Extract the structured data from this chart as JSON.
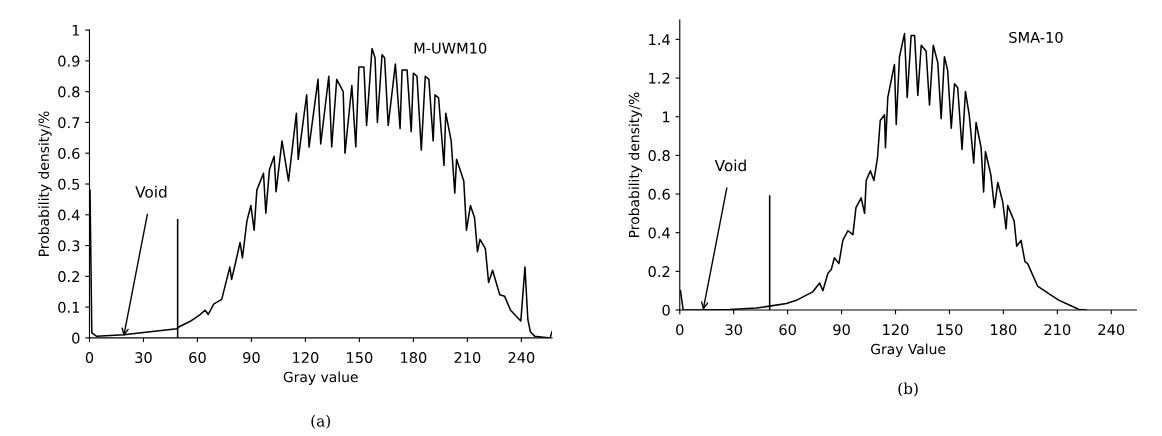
{
  "chart_data": [
    {
      "type": "line",
      "xlabel": "Gray value",
      "ylabel": "Probability density/%",
      "xlim": [
        0,
        257
      ],
      "ylim": [
        0,
        1
      ],
      "xticks": [
        0,
        30,
        60,
        90,
        120,
        150,
        180,
        210,
        240
      ],
      "yticks": [
        0,
        0.1,
        0.2,
        0.3,
        0.4,
        0.5,
        0.6,
        0.7,
        0.8,
        0.9,
        1
      ],
      "grid": false,
      "legend": false,
      "marker": "none",
      "line_style": "solid",
      "annotations": [
        {
          "text": "Void",
          "x": 19,
          "y": 0.005
        },
        "M-UWM10",
        "(a)"
      ],
      "series": [
        {
          "color": "#000000",
          "x": [
            0.3,
            1.3,
            4,
            19,
            33.7,
            48.6,
            50.4,
            56,
            61.5,
            64.3,
            66,
            69,
            73.5,
            75.4,
            78,
            79,
            81,
            83.7,
            85,
            87.5,
            89.7,
            91.5,
            93,
            96.7,
            98,
            100,
            102.6,
            103.7,
            107,
            110.6,
            115,
            116,
            120.7,
            122,
            127,
            128.5,
            133,
            134.6,
            137.4,
            141,
            142,
            145.8,
            148,
            149.7,
            152.5,
            154,
            157,
            158.7,
            160,
            162.6,
            164,
            166,
            170,
            172.6,
            173.7,
            176.5,
            178.8,
            180,
            182,
            184.4,
            186.6,
            188.6,
            191,
            192,
            194,
            197,
            198,
            201,
            203,
            204,
            208,
            209.5,
            211.7,
            214,
            215.6,
            217,
            220,
            221.8,
            224,
            228,
            230.7,
            234,
            239.7,
            242,
            243.6,
            245,
            247.5,
            256,
            257
          ],
          "values": [
            0.48,
            0.016,
            0.005,
            0.01,
            0.02,
            0.03,
            0.038,
            0.054,
            0.076,
            0.09,
            0.076,
            0.11,
            0.125,
            0.17,
            0.23,
            0.19,
            0.24,
            0.31,
            0.26,
            0.38,
            0.43,
            0.35,
            0.48,
            0.535,
            0.405,
            0.546,
            0.59,
            0.475,
            0.64,
            0.51,
            0.73,
            0.58,
            0.79,
            0.62,
            0.84,
            0.63,
            0.85,
            0.62,
            0.84,
            0.8,
            0.6,
            0.82,
            0.62,
            0.88,
            0.88,
            0.69,
            0.94,
            0.91,
            0.7,
            0.92,
            0.91,
            0.69,
            0.89,
            0.68,
            0.87,
            0.87,
            0.67,
            0.86,
            0.85,
            0.61,
            0.85,
            0.84,
            0.64,
            0.79,
            0.78,
            0.56,
            0.73,
            0.64,
            0.47,
            0.58,
            0.51,
            0.35,
            0.43,
            0.39,
            0.28,
            0.32,
            0.29,
            0.18,
            0.22,
            0.14,
            0.135,
            0.09,
            0.055,
            0.23,
            0.06,
            0.02,
            0.005,
            0,
            0.02
          ]
        },
        {
          "color": "#000000",
          "x": [
            49,
            49
          ],
          "values": [
            0,
            0.384
          ]
        }
      ]
    },
    {
      "type": "line",
      "xlabel": "Gray Value",
      "ylabel": "Probability density/%",
      "xlim": [
        0,
        254
      ],
      "ylim": [
        0,
        1.5
      ],
      "xticks": [
        0,
        30,
        60,
        90,
        120,
        150,
        180,
        210,
        240
      ],
      "yticks": [
        0,
        0.2,
        0.4,
        0.6,
        0.8,
        1,
        1.2,
        1.4
      ],
      "grid": false,
      "legend": false,
      "marker": "none",
      "line_style": "solid",
      "annotations": [
        {
          "text": "Void",
          "x": 13,
          "y": 0
        },
        "SMA-10",
        "(b)"
      ],
      "series": [
        {
          "color": "#000000",
          "x": [
            0.4,
            1.9,
            13.3,
            27.8,
            42.6,
            50,
            59.3,
            64.8,
            70.4,
            74,
            77.8,
            79.6,
            82.4,
            84.3,
            86,
            88.5,
            90.7,
            93.5,
            96.3,
            98,
            100.9,
            102.8,
            103.7,
            106,
            108,
            110,
            111.5,
            113.9,
            114.4,
            115.7,
            119.4,
            120.4,
            122.2,
            125,
            126.5,
            128.7,
            130.6,
            132.4,
            134.3,
            137,
            138.9,
            141,
            143.5,
            145.4,
            147.2,
            149,
            151,
            152.8,
            154.6,
            157,
            158.9,
            161,
            163.5,
            164.8,
            167.6,
            169,
            170,
            173,
            175,
            176.9,
            179.6,
            181.5,
            182.4,
            186,
            187.4,
            189.8,
            192,
            193.5,
            195.4,
            199,
            202.8,
            206.5,
            211,
            216.7,
            222,
            225.9
          ],
          "values": [
            0.1,
            0,
            0,
            0.003,
            0.01,
            0.02,
            0.034,
            0.05,
            0.077,
            0.094,
            0.14,
            0.1,
            0.19,
            0.21,
            0.27,
            0.24,
            0.36,
            0.41,
            0.39,
            0.53,
            0.58,
            0.5,
            0.67,
            0.72,
            0.67,
            0.79,
            0.98,
            1.01,
            0.84,
            1.1,
            1.27,
            0.96,
            1.31,
            1.43,
            1.1,
            1.42,
            1.42,
            1.11,
            1.37,
            1.34,
            1.06,
            1.37,
            1.28,
            0.99,
            1.31,
            1.24,
            0.94,
            1.17,
            1.15,
            0.83,
            1.13,
            1.01,
            0.76,
            0.97,
            0.84,
            0.61,
            0.82,
            0.7,
            0.53,
            0.66,
            0.56,
            0.42,
            0.54,
            0.46,
            0.33,
            0.36,
            0.25,
            0.24,
            0.2,
            0.124,
            0.1,
            0.077,
            0.05,
            0.026,
            0.003,
            0
          ]
        },
        {
          "color": "#000000",
          "x": [
            50,
            50
          ],
          "values": [
            0,
            0.59
          ]
        }
      ]
    }
  ]
}
